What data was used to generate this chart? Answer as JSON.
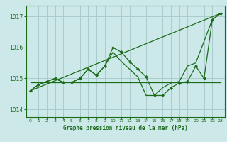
{
  "title": "Graphe pression niveau de la mer (hPa)",
  "background_color": "#cce8e8",
  "grid_color": "#aacccc",
  "line_color": "#1a6b1a",
  "xlim": [
    -0.5,
    23.5
  ],
  "ylim": [
    1013.75,
    1017.35
  ],
  "yticks": [
    1014,
    1015,
    1016,
    1017
  ],
  "xticks": [
    0,
    1,
    2,
    3,
    4,
    5,
    6,
    7,
    8,
    9,
    10,
    11,
    12,
    13,
    14,
    15,
    16,
    17,
    18,
    19,
    20,
    21,
    22,
    23
  ],
  "series_main": {
    "x": [
      0,
      1,
      2,
      3,
      4,
      5,
      6,
      7,
      8,
      9,
      10,
      11,
      12,
      13,
      14,
      15,
      16,
      17,
      18,
      19,
      20,
      21,
      22,
      23
    ],
    "y": [
      1014.6,
      1014.8,
      1014.9,
      1015.0,
      1014.87,
      1014.87,
      1015.0,
      1015.3,
      1015.1,
      1015.4,
      1016.0,
      1015.85,
      1015.55,
      1015.3,
      1015.05,
      1014.45,
      1014.45,
      1014.7,
      1014.85,
      1014.9,
      1015.4,
      1015.0,
      1016.9,
      1017.1
    ]
  },
  "series_smooth": {
    "x": [
      0,
      1,
      2,
      3,
      4,
      5,
      6,
      7,
      8,
      9,
      10,
      11,
      12,
      13,
      14,
      15,
      16,
      17,
      18,
      19,
      20,
      21,
      22,
      23
    ],
    "y": [
      1014.6,
      1014.8,
      1014.9,
      1015.0,
      1014.87,
      1014.87,
      1015.0,
      1015.3,
      1015.1,
      1015.4,
      1015.85,
      1015.55,
      1015.3,
      1015.05,
      1014.45,
      1014.45,
      1014.7,
      1014.85,
      1014.9,
      1015.4,
      1015.5,
      1016.2,
      1016.9,
      1017.1
    ]
  },
  "trend_line": {
    "x": [
      0,
      23
    ],
    "y": [
      1014.6,
      1017.1
    ]
  },
  "flat_line": {
    "x": [
      0,
      23
    ],
    "y": [
      1014.87,
      1014.87
    ]
  }
}
